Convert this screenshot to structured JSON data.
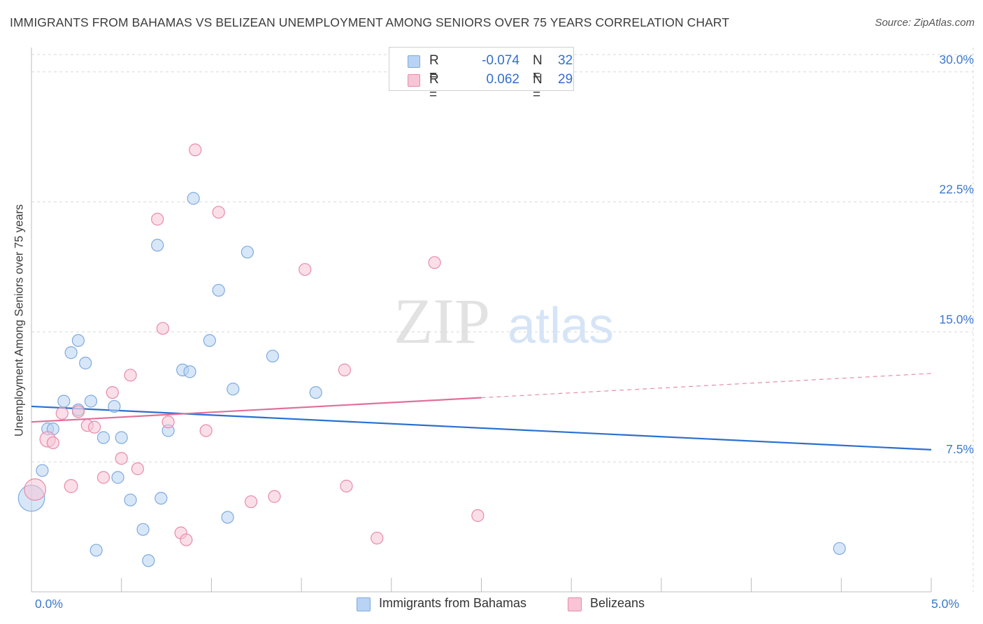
{
  "title": "IMMIGRANTS FROM BAHAMAS VS BELIZEAN UNEMPLOYMENT AMONG SENIORS OVER 75 YEARS CORRELATION CHART",
  "source": "Source: ZipAtlas.com",
  "watermark": {
    "zip": "ZIP",
    "atlas": "atlas"
  },
  "legend": {
    "rows": [
      {
        "r_label": "R =",
        "r_value": "-0.074",
        "n_label": "N =",
        "n_value": "32"
      },
      {
        "r_label": "R =",
        "r_value": "0.062",
        "n_label": "N =",
        "n_value": "29"
      }
    ]
  },
  "colors": {
    "blue_fill": "#b8d3f3",
    "blue_stroke": "#7eaadf",
    "blue_line": "#2a6fd0",
    "pink_fill": "#f8c4d6",
    "pink_stroke": "#e88aab",
    "pink_line": "#e0709a",
    "tick_label": "#3b78cc",
    "grid": "#d9d9d9"
  },
  "chart_data": {
    "type": "scatter",
    "title": "IMMIGRANTS FROM BAHAMAS VS BELIZEAN UNEMPLOYMENT AMONG SENIORS OVER 75 YEARS CORRELATION CHART",
    "xlabel": "",
    "ylabel": "Unemployment Among Seniors over 75 years",
    "xlim": [
      0,
      5
    ],
    "ylim": [
      0,
      31
    ],
    "x_tick_labels": [
      {
        "value": 0,
        "label": "0.0%"
      },
      {
        "value": 5,
        "label": "5.0%"
      }
    ],
    "y_ticks": [
      {
        "value": 7.5,
        "label": "7.5%"
      },
      {
        "value": 15,
        "label": "15.0%"
      },
      {
        "value": 22.5,
        "label": "22.5%"
      },
      {
        "value": 30,
        "label": "30.0%"
      }
    ],
    "grid": true,
    "legend_position": "top-center",
    "series": [
      {
        "name": "Immigrants from Bahamas",
        "color": "#b8d3f3",
        "r": -0.074,
        "n": 32,
        "trend": {
          "x": [
            0,
            5
          ],
          "y": [
            10.7,
            8.2
          ]
        },
        "points": [
          {
            "x": 0.0,
            "y": 5.4,
            "s": 2.2
          },
          {
            "x": 0.06,
            "y": 7.0,
            "s": 1
          },
          {
            "x": 0.09,
            "y": 9.4,
            "s": 1
          },
          {
            "x": 0.12,
            "y": 9.4,
            "s": 1
          },
          {
            "x": 0.26,
            "y": 10.5,
            "s": 1
          },
          {
            "x": 0.18,
            "y": 11.0,
            "s": 1
          },
          {
            "x": 0.33,
            "y": 11.0,
            "s": 1
          },
          {
            "x": 0.22,
            "y": 13.8,
            "s": 1
          },
          {
            "x": 0.26,
            "y": 14.5,
            "s": 1
          },
          {
            "x": 0.3,
            "y": 13.2,
            "s": 1
          },
          {
            "x": 0.36,
            "y": 2.4,
            "s": 1
          },
          {
            "x": 0.4,
            "y": 8.9,
            "s": 1
          },
          {
            "x": 0.46,
            "y": 10.7,
            "s": 1
          },
          {
            "x": 0.48,
            "y": 6.6,
            "s": 1
          },
          {
            "x": 0.5,
            "y": 8.9,
            "s": 1
          },
          {
            "x": 0.55,
            "y": 5.3,
            "s": 1
          },
          {
            "x": 0.62,
            "y": 3.6,
            "s": 1
          },
          {
            "x": 0.65,
            "y": 1.8,
            "s": 1
          },
          {
            "x": 0.7,
            "y": 20.0,
            "s": 1
          },
          {
            "x": 0.72,
            "y": 5.4,
            "s": 1
          },
          {
            "x": 0.76,
            "y": 9.3,
            "s": 1
          },
          {
            "x": 0.84,
            "y": 12.8,
            "s": 1
          },
          {
            "x": 0.88,
            "y": 12.7,
            "s": 1
          },
          {
            "x": 0.9,
            "y": 22.7,
            "s": 1
          },
          {
            "x": 0.99,
            "y": 14.5,
            "s": 1
          },
          {
            "x": 1.04,
            "y": 17.4,
            "s": 1
          },
          {
            "x": 1.09,
            "y": 4.3,
            "s": 1
          },
          {
            "x": 1.12,
            "y": 11.7,
            "s": 1
          },
          {
            "x": 1.2,
            "y": 19.6,
            "s": 1
          },
          {
            "x": 1.34,
            "y": 13.6,
            "s": 1
          },
          {
            "x": 1.58,
            "y": 11.5,
            "s": 1
          },
          {
            "x": 4.49,
            "y": 2.5,
            "s": 1
          }
        ]
      },
      {
        "name": "Belizeans",
        "color": "#f8c4d6",
        "r": 0.062,
        "n": 29,
        "trend": {
          "x": [
            0,
            2.5
          ],
          "y": [
            9.8,
            11.2
          ],
          "dashed_extension": {
            "x": [
              2.5,
              5
            ],
            "y": [
              11.2,
              12.6
            ]
          }
        },
        "points": [
          {
            "x": 0.02,
            "y": 5.9,
            "s": 1.8
          },
          {
            "x": 0.09,
            "y": 8.8,
            "s": 1.3
          },
          {
            "x": 0.12,
            "y": 8.6,
            "s": 1
          },
          {
            "x": 0.17,
            "y": 10.3,
            "s": 1
          },
          {
            "x": 0.22,
            "y": 6.1,
            "s": 1.1
          },
          {
            "x": 0.26,
            "y": 10.4,
            "s": 1
          },
          {
            "x": 0.31,
            "y": 9.6,
            "s": 1
          },
          {
            "x": 0.35,
            "y": 9.5,
            "s": 1
          },
          {
            "x": 0.4,
            "y": 6.6,
            "s": 1
          },
          {
            "x": 0.45,
            "y": 11.5,
            "s": 1
          },
          {
            "x": 0.5,
            "y": 7.7,
            "s": 1
          },
          {
            "x": 0.55,
            "y": 12.5,
            "s": 1
          },
          {
            "x": 0.59,
            "y": 7.1,
            "s": 1
          },
          {
            "x": 0.7,
            "y": 21.5,
            "s": 1
          },
          {
            "x": 0.73,
            "y": 15.2,
            "s": 1
          },
          {
            "x": 0.76,
            "y": 9.8,
            "s": 1
          },
          {
            "x": 0.83,
            "y": 3.4,
            "s": 1
          },
          {
            "x": 0.86,
            "y": 3.0,
            "s": 1
          },
          {
            "x": 0.91,
            "y": 25.5,
            "s": 1
          },
          {
            "x": 0.97,
            "y": 9.3,
            "s": 1
          },
          {
            "x": 1.04,
            "y": 21.9,
            "s": 1
          },
          {
            "x": 1.22,
            "y": 5.2,
            "s": 1
          },
          {
            "x": 1.35,
            "y": 5.5,
            "s": 1
          },
          {
            "x": 1.52,
            "y": 18.6,
            "s": 1
          },
          {
            "x": 1.74,
            "y": 12.8,
            "s": 1
          },
          {
            "x": 1.75,
            "y": 6.1,
            "s": 1
          },
          {
            "x": 1.92,
            "y": 3.1,
            "s": 1
          },
          {
            "x": 2.24,
            "y": 19.0,
            "s": 1
          },
          {
            "x": 2.48,
            "y": 4.4,
            "s": 1
          }
        ]
      }
    ]
  }
}
